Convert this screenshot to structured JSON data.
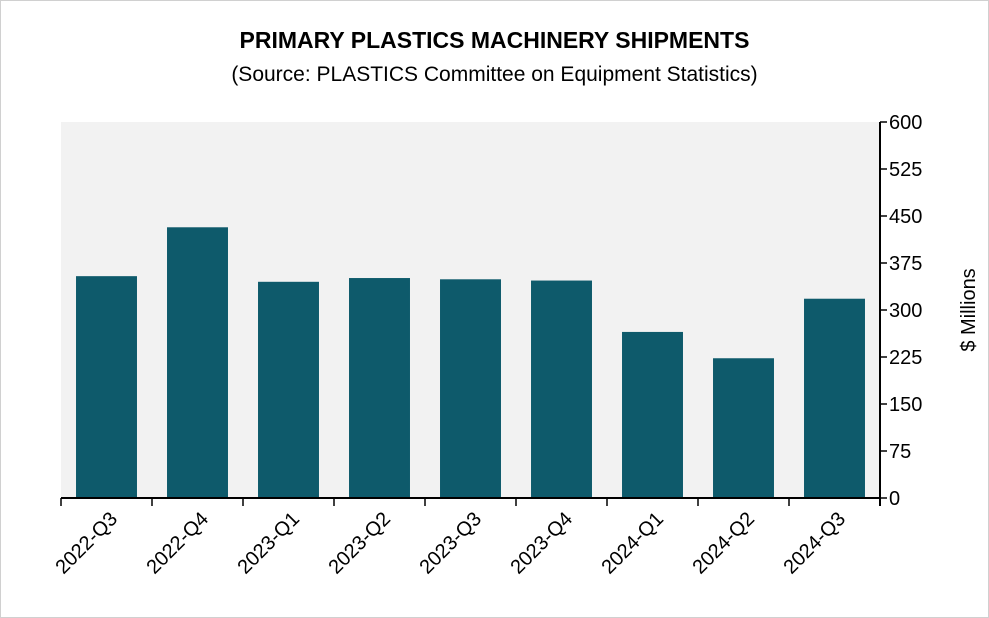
{
  "chart_data": {
    "type": "bar",
    "title": "PRIMARY PLASTICS MACHINERY SHIPMENTS",
    "subtitle": "(Source: PLASTICS Committee on Equipment Statistics)",
    "categories": [
      "2022-Q3",
      "2022-Q4",
      "2023-Q1",
      "2023-Q2",
      "2023-Q3",
      "2023-Q4",
      "2024-Q1",
      "2024-Q2",
      "2024-Q3"
    ],
    "values": [
      354,
      432,
      345,
      351,
      349,
      347,
      265,
      223,
      318
    ],
    "xlabel": "",
    "ylabel": "$ Millions",
    "ylim": [
      0,
      600
    ],
    "yticks": [
      "0",
      "75",
      "150",
      "225",
      "300",
      "375",
      "450",
      "525",
      "600"
    ],
    "y_axis_side": "right",
    "grid": false,
    "legend": "none",
    "colors": {
      "bar": "#0e5a6b",
      "plot_background": "#f2f2f2"
    }
  }
}
